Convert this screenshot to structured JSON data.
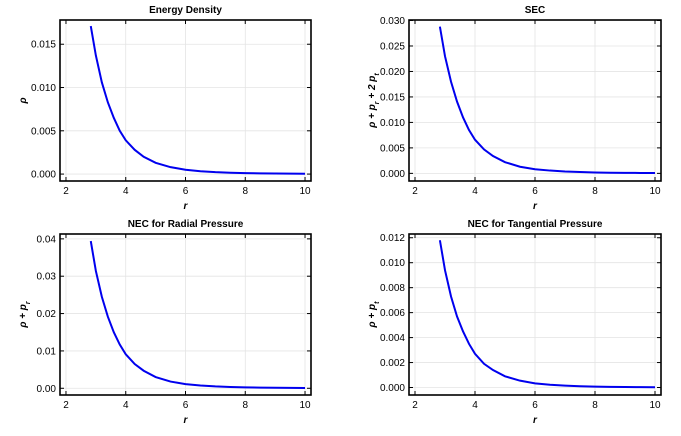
{
  "chart_data": [
    {
      "type": "line",
      "title": "Energy Density",
      "xlabel": "r",
      "ylabel": "ρ",
      "xlim": [
        1.8,
        10.2
      ],
      "ylim": [
        -0.0008,
        0.0178
      ],
      "xticks": [
        "2",
        "4",
        "6",
        "8",
        "10"
      ],
      "yticks": [
        "0.000",
        "0.005",
        "0.010",
        "0.015"
      ],
      "grid": true,
      "series": [
        {
          "color": "#0000ee",
          "x": [
            2.83,
            3.0,
            3.2,
            3.4,
            3.6,
            3.8,
            4.0,
            4.3,
            4.6,
            5.0,
            5.5,
            6.0,
            6.5,
            7.0,
            7.5,
            8.0,
            8.5,
            9.0,
            9.5,
            10.0
          ],
          "y": [
            0.0171,
            0.0137,
            0.0106,
            0.0083,
            0.0065,
            0.005,
            0.0039,
            0.0028,
            0.002,
            0.0013,
            0.0008,
            0.0005,
            0.00033,
            0.00022,
            0.00015,
            0.00011,
            8e-05,
            6e-05,
            5e-05,
            4e-05
          ]
        }
      ]
    },
    {
      "type": "line",
      "title": "SEC",
      "xlabel": "r",
      "ylabel": "ρ + p_r + 2 p_t",
      "xlim": [
        1.8,
        10.2
      ],
      "ylim": [
        -0.0015,
        0.0301
      ],
      "xticks": [
        "2",
        "4",
        "6",
        "8",
        "10"
      ],
      "yticks": [
        "0.000",
        "0.005",
        "0.010",
        "0.015",
        "0.020",
        "0.025",
        "0.030"
      ],
      "grid": true,
      "series": [
        {
          "color": "#0000ee",
          "x": [
            2.83,
            3.0,
            3.2,
            3.4,
            3.6,
            3.8,
            4.0,
            4.3,
            4.6,
            5.0,
            5.5,
            6.0,
            6.5,
            7.0,
            7.5,
            8.0,
            8.5,
            9.0,
            9.5,
            10.0
          ],
          "y": [
            0.0288,
            0.023,
            0.018,
            0.0141,
            0.011,
            0.0085,
            0.0066,
            0.0047,
            0.0034,
            0.0022,
            0.0013,
            0.0008,
            0.00055,
            0.00037,
            0.00026,
            0.00018,
            0.00013,
            0.0001,
            8e-05,
            6e-05
          ]
        }
      ]
    },
    {
      "type": "line",
      "title": "NEC for Radial Pressure",
      "xlabel": "r",
      "ylabel": "ρ + p_r",
      "xlim": [
        1.8,
        10.2
      ],
      "ylim": [
        -0.0018,
        0.0413
      ],
      "xticks": [
        "2",
        "4",
        "6",
        "8",
        "10"
      ],
      "yticks": [
        "0.00",
        "0.01",
        "0.02",
        "0.03",
        "0.04"
      ],
      "grid": true,
      "series": [
        {
          "color": "#0000ee",
          "x": [
            2.83,
            3.0,
            3.2,
            3.4,
            3.6,
            3.8,
            4.0,
            4.3,
            4.6,
            5.0,
            5.5,
            6.0,
            6.5,
            7.0,
            7.5,
            8.0,
            8.5,
            9.0,
            9.5,
            10.0
          ],
          "y": [
            0.0394,
            0.0314,
            0.0245,
            0.0192,
            0.015,
            0.0117,
            0.0091,
            0.0065,
            0.0047,
            0.003,
            0.0018,
            0.0011,
            0.00075,
            0.0005,
            0.00035,
            0.00025,
            0.00018,
            0.00013,
            0.0001,
            8e-05
          ]
        }
      ]
    },
    {
      "type": "line",
      "title": "NEC for Tangential Pressure",
      "xlabel": "r",
      "ylabel": "ρ + p_t",
      "xlim": [
        1.8,
        10.2
      ],
      "ylim": [
        -0.0006,
        0.0123
      ],
      "xticks": [
        "2",
        "4",
        "6",
        "8",
        "10"
      ],
      "yticks": [
        "0.000",
        "0.002",
        "0.004",
        "0.006",
        "0.008",
        "0.010",
        "0.012"
      ],
      "grid": true,
      "series": [
        {
          "color": "#0000ee",
          "x": [
            2.83,
            3.0,
            3.2,
            3.4,
            3.6,
            3.8,
            4.0,
            4.3,
            4.6,
            5.0,
            5.5,
            6.0,
            6.5,
            7.0,
            7.5,
            8.0,
            8.5,
            9.0,
            9.5,
            10.0
          ],
          "y": [
            0.0118,
            0.0094,
            0.0073,
            0.0057,
            0.0045,
            0.0035,
            0.0027,
            0.0019,
            0.0014,
            0.0009,
            0.00055,
            0.00033,
            0.00022,
            0.00015,
            0.0001,
            7e-05,
            5e-05,
            4e-05,
            3e-05,
            2e-05
          ]
        }
      ]
    }
  ]
}
